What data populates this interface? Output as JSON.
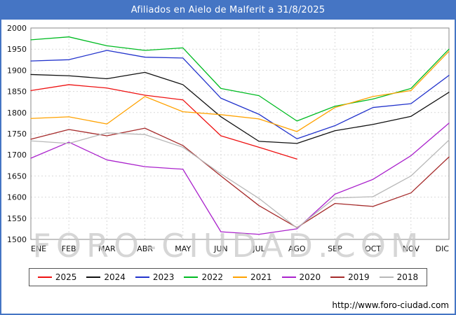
{
  "window": {
    "title": "Afiliados en Aielo de Malferit a 31/8/2025"
  },
  "watermark_text": "FORO-CIUDAD.COM",
  "footer_url": "http://www.foro-ciudad.com",
  "colors": {
    "titlebar": "#4575c4",
    "frame_border": "#4575c4",
    "grid": "#d9d9d9",
    "axis": "#8a8a8a",
    "watermark": "#c9c9c9"
  },
  "chart_data": {
    "type": "line",
    "title": "Afiliados en Aielo de Malferit a 31/8/2025",
    "categories": [
      "ENE",
      "FEB",
      "MAR",
      "ABR",
      "MAY",
      "JUN",
      "JUL",
      "AGO",
      "SEP",
      "OCT",
      "NOV",
      "DIC"
    ],
    "xlabel": "",
    "ylabel": "",
    "ylim": [
      1500,
      2000
    ],
    "ytick_step": 50,
    "grid": true,
    "legend_position": "bottom",
    "series": [
      {
        "name": "2025",
        "color": "#ee1111",
        "values": [
          1852,
          1866,
          1858,
          1841,
          1830,
          1745,
          1718,
          1690
        ]
      },
      {
        "name": "2024",
        "color": "#111111",
        "values": [
          1890,
          1887,
          1880,
          1895,
          1866,
          1790,
          1732,
          1727,
          1757,
          1772,
          1791,
          1848
        ]
      },
      {
        "name": "2023",
        "color": "#2233cc",
        "values": [
          1922,
          1925,
          1947,
          1931,
          1929,
          1834,
          1796,
          1738,
          1769,
          1812,
          1821,
          1888
        ]
      },
      {
        "name": "2022",
        "color": "#00bb22",
        "values": [
          1972,
          1979,
          1958,
          1947,
          1953,
          1857,
          1840,
          1780,
          1815,
          1832,
          1857,
          1950
        ]
      },
      {
        "name": "2021",
        "color": "#ffa200",
        "values": [
          1786,
          1790,
          1773,
          1838,
          1802,
          1795,
          1785,
          1755,
          1812,
          1838,
          1852,
          1945
        ]
      },
      {
        "name": "2020",
        "color": "#aa22cc",
        "values": [
          1692,
          1730,
          1688,
          1672,
          1666,
          1518,
          1512,
          1525,
          1607,
          1642,
          1698,
          1775
        ]
      },
      {
        "name": "2019",
        "color": "#a52a2a",
        "values": [
          1737,
          1760,
          1745,
          1763,
          1722,
          1650,
          1580,
          1528,
          1585,
          1578,
          1610,
          1695
        ]
      },
      {
        "name": "2018",
        "color": "#b8b8b8",
        "values": [
          1733,
          1727,
          1752,
          1748,
          1718,
          1655,
          1597,
          1527,
          1598,
          1601,
          1650,
          1735
        ]
      }
    ]
  }
}
